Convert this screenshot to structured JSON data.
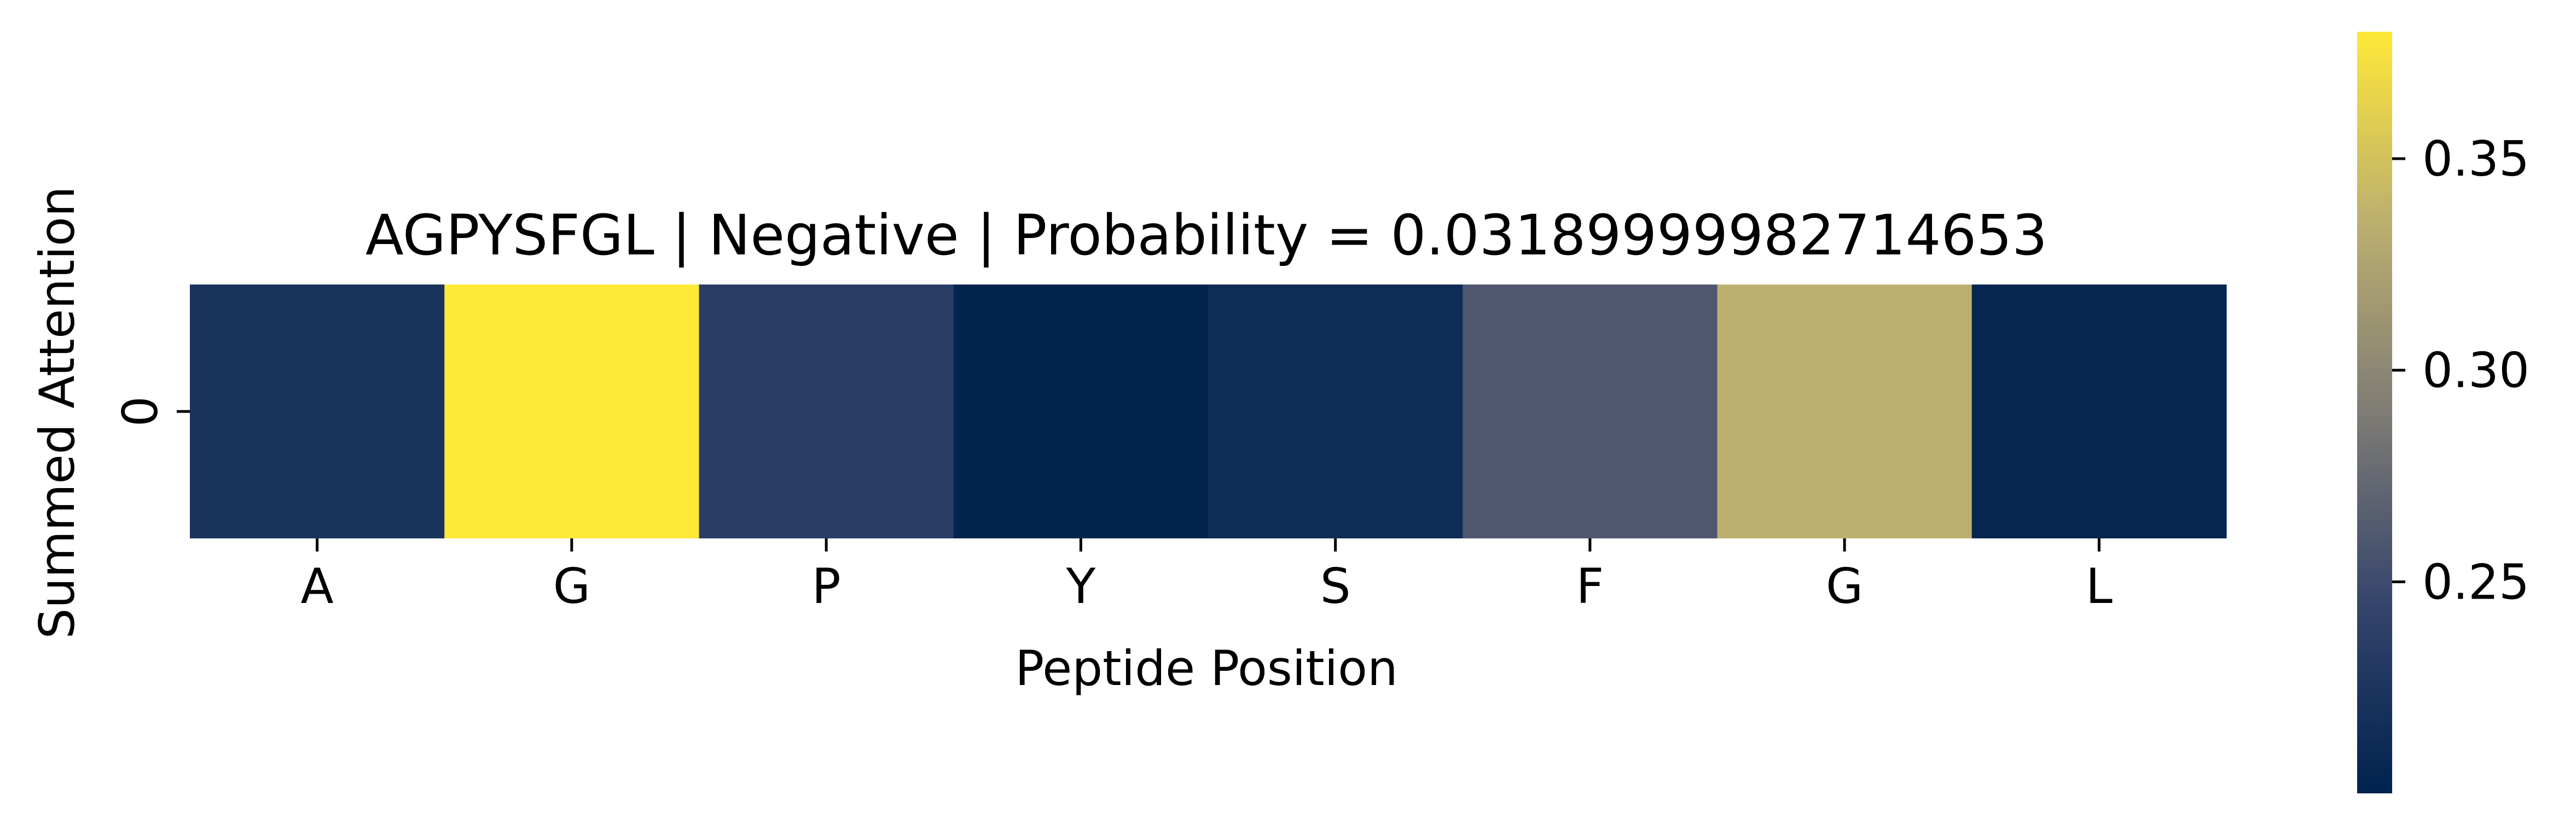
{
  "chart_data": {
    "type": "heatmap",
    "title": "AGPYSFGL | Negative | Probability = 0.03189999982714653",
    "xlabel": "Peptide Position",
    "ylabel": "Summed Attention",
    "x_tick_labels": [
      "A",
      "G",
      "P",
      "Y",
      "S",
      "F",
      "G",
      "L"
    ],
    "y_tick_labels": [
      "0"
    ],
    "values": [
      [
        0.222,
        0.38,
        0.235,
        0.203,
        0.213,
        0.26,
        0.335,
        0.205
      ]
    ],
    "colormap": "cividis",
    "colorbar": {
      "vmin": 0.2,
      "vmax": 0.38,
      "ticks": [
        0.25,
        0.3,
        0.35
      ],
      "tick_labels": [
        "0.25",
        "0.30",
        "0.35"
      ]
    },
    "grid": false,
    "legend": "colorbar-right"
  }
}
